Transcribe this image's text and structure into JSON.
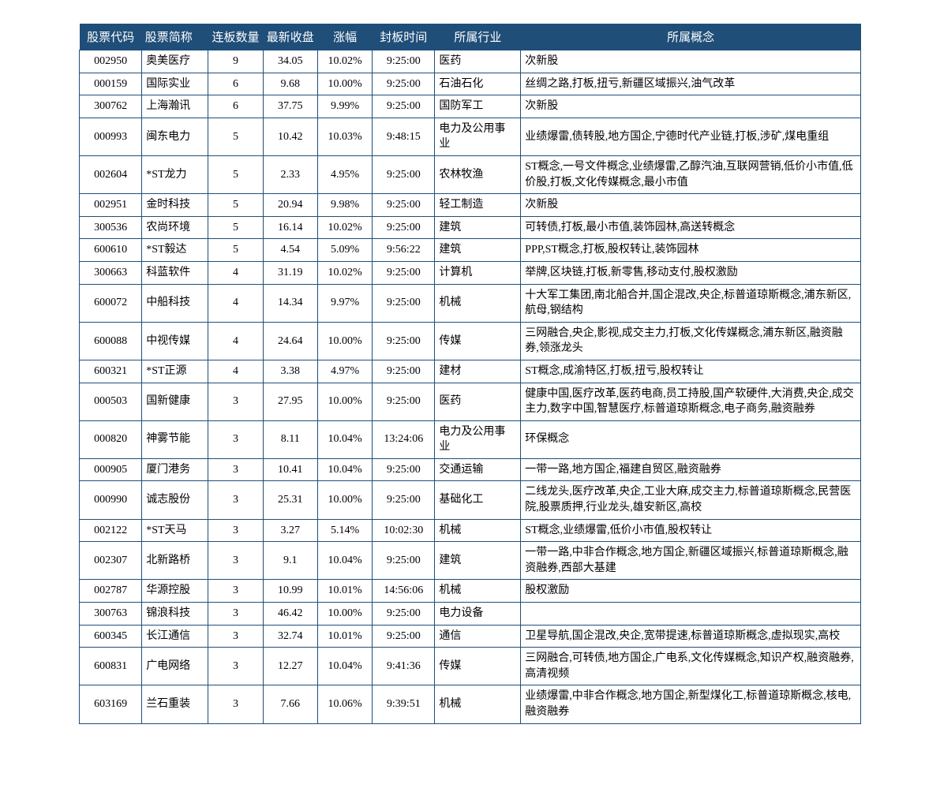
{
  "table": {
    "type": "table",
    "header_bg_color": "#1f4e79",
    "header_text_color": "#ffffff",
    "border_color": "#1f4e79",
    "font_size_header": 15,
    "font_size_body": 14,
    "columns": [
      {
        "key": "code",
        "label": "股票代码",
        "width": "8%",
        "align": "center"
      },
      {
        "key": "name",
        "label": "股票简称",
        "width": "8.5%",
        "align": "left"
      },
      {
        "key": "count",
        "label": "连板数量",
        "width": "7%",
        "align": "center"
      },
      {
        "key": "price",
        "label": "最新收盘",
        "width": "7%",
        "align": "center"
      },
      {
        "key": "change",
        "label": "涨幅",
        "width": "7%",
        "align": "center"
      },
      {
        "key": "time",
        "label": "封板时间",
        "width": "8%",
        "align": "center"
      },
      {
        "key": "industry",
        "label": "所属行业",
        "width": "11%",
        "align": "left"
      },
      {
        "key": "concept",
        "label": "所属概念",
        "width": "43.5%",
        "align": "left"
      }
    ],
    "rows": [
      {
        "code": "002950",
        "name": "奥美医疗",
        "count": "9",
        "price": "34.05",
        "change": "10.02%",
        "time": "9:25:00",
        "industry": "医药",
        "concept": "次新股"
      },
      {
        "code": "000159",
        "name": "国际实业",
        "count": "6",
        "price": "9.68",
        "change": "10.00%",
        "time": "9:25:00",
        "industry": "石油石化",
        "concept": "丝绸之路,打板,扭亏,新疆区域振兴,油气改革"
      },
      {
        "code": "300762",
        "name": "上海瀚讯",
        "count": "6",
        "price": "37.75",
        "change": "9.99%",
        "time": "9:25:00",
        "industry": "国防军工",
        "concept": "次新股"
      },
      {
        "code": "000993",
        "name": "闽东电力",
        "count": "5",
        "price": "10.42",
        "change": "10.03%",
        "time": "9:48:15",
        "industry": "电力及公用事业",
        "concept": "业绩爆雷,债转股,地方国企,宁德时代产业链,打板,涉矿,煤电重组"
      },
      {
        "code": "002604",
        "name": "*ST龙力",
        "count": "5",
        "price": "2.33",
        "change": "4.95%",
        "time": "9:25:00",
        "industry": "农林牧渔",
        "concept": "ST概念,一号文件概念,业绩爆雷,乙醇汽油,互联网营销,低价小市值,低价股,打板,文化传媒概念,最小市值"
      },
      {
        "code": "002951",
        "name": "金时科技",
        "count": "5",
        "price": "20.94",
        "change": "9.98%",
        "time": "9:25:00",
        "industry": "轻工制造",
        "concept": "次新股"
      },
      {
        "code": "300536",
        "name": "农尚环境",
        "count": "5",
        "price": "16.14",
        "change": "10.02%",
        "time": "9:25:00",
        "industry": "建筑",
        "concept": "可转债,打板,最小市值,装饰园林,高送转概念"
      },
      {
        "code": "600610",
        "name": "*ST毅达",
        "count": "5",
        "price": "4.54",
        "change": "5.09%",
        "time": "9:56:22",
        "industry": "建筑",
        "concept": "PPP,ST概念,打板,股权转让,装饰园林"
      },
      {
        "code": "300663",
        "name": "科蓝软件",
        "count": "4",
        "price": "31.19",
        "change": "10.02%",
        "time": "9:25:00",
        "industry": "计算机",
        "concept": "举牌,区块链,打板,新零售,移动支付,股权激励"
      },
      {
        "code": "600072",
        "name": "中船科技",
        "count": "4",
        "price": "14.34",
        "change": "9.97%",
        "time": "9:25:00",
        "industry": "机械",
        "concept": "十大军工集团,南北船合并,国企混改,央企,标普道琼斯概念,浦东新区,航母,钢结构"
      },
      {
        "code": "600088",
        "name": "中视传媒",
        "count": "4",
        "price": "24.64",
        "change": "10.00%",
        "time": "9:25:00",
        "industry": "传媒",
        "concept": "三网融合,央企,影视,成交主力,打板,文化传媒概念,浦东新区,融资融券,领涨龙头"
      },
      {
        "code": "600321",
        "name": "*ST正源",
        "count": "4",
        "price": "3.38",
        "change": "4.97%",
        "time": "9:25:00",
        "industry": "建材",
        "concept": "ST概念,成渝特区,打板,扭亏,股权转让"
      },
      {
        "code": "000503",
        "name": "国新健康",
        "count": "3",
        "price": "27.95",
        "change": "10.00%",
        "time": "9:25:00",
        "industry": "医药",
        "concept": "健康中国,医疗改革,医药电商,员工持股,国产软硬件,大消费,央企,成交主力,数字中国,智慧医疗,标普道琼斯概念,电子商务,融资融券"
      },
      {
        "code": "000820",
        "name": "神雾节能",
        "count": "3",
        "price": "8.11",
        "change": "10.04%",
        "time": "13:24:06",
        "industry": "电力及公用事业",
        "concept": "环保概念"
      },
      {
        "code": "000905",
        "name": "厦门港务",
        "count": "3",
        "price": "10.41",
        "change": "10.04%",
        "time": "9:25:00",
        "industry": "交通运输",
        "concept": "一带一路,地方国企,福建自贸区,融资融券"
      },
      {
        "code": "000990",
        "name": "诚志股份",
        "count": "3",
        "price": "25.31",
        "change": "10.00%",
        "time": "9:25:00",
        "industry": "基础化工",
        "concept": "二线龙头,医疗改革,央企,工业大麻,成交主力,标普道琼斯概念,民营医院,股票质押,行业龙头,雄安新区,高校"
      },
      {
        "code": "002122",
        "name": "*ST天马",
        "count": "3",
        "price": "3.27",
        "change": "5.14%",
        "time": "10:02:30",
        "industry": "机械",
        "concept": "ST概念,业绩爆雷,低价小市值,股权转让"
      },
      {
        "code": "002307",
        "name": "北新路桥",
        "count": "3",
        "price": "9.1",
        "change": "10.04%",
        "time": "9:25:00",
        "industry": "建筑",
        "concept": "一带一路,中非合作概念,地方国企,新疆区域振兴,标普道琼斯概念,融资融券,西部大基建"
      },
      {
        "code": "002787",
        "name": "华源控股",
        "count": "3",
        "price": "10.99",
        "change": "10.01%",
        "time": "14:56:06",
        "industry": "机械",
        "concept": "股权激励"
      },
      {
        "code": "300763",
        "name": "锦浪科技",
        "count": "3",
        "price": "46.42",
        "change": "10.00%",
        "time": "9:25:00",
        "industry": "电力设备",
        "concept": ""
      },
      {
        "code": "600345",
        "name": "长江通信",
        "count": "3",
        "price": "32.74",
        "change": "10.01%",
        "time": "9:25:00",
        "industry": "通信",
        "concept": "卫星导航,国企混改,央企,宽带提速,标普道琼斯概念,虚拟现实,高校"
      },
      {
        "code": "600831",
        "name": "广电网络",
        "count": "3",
        "price": "12.27",
        "change": "10.04%",
        "time": "9:41:36",
        "industry": "传媒",
        "concept": "三网融合,可转债,地方国企,广电系,文化传媒概念,知识产权,融资融券,高清视频"
      },
      {
        "code": "603169",
        "name": "兰石重装",
        "count": "3",
        "price": "7.66",
        "change": "10.06%",
        "time": "9:39:51",
        "industry": "机械",
        "concept": "业绩爆雷,中非合作概念,地方国企,新型煤化工,标普道琼斯概念,核电,融资融券"
      }
    ]
  }
}
